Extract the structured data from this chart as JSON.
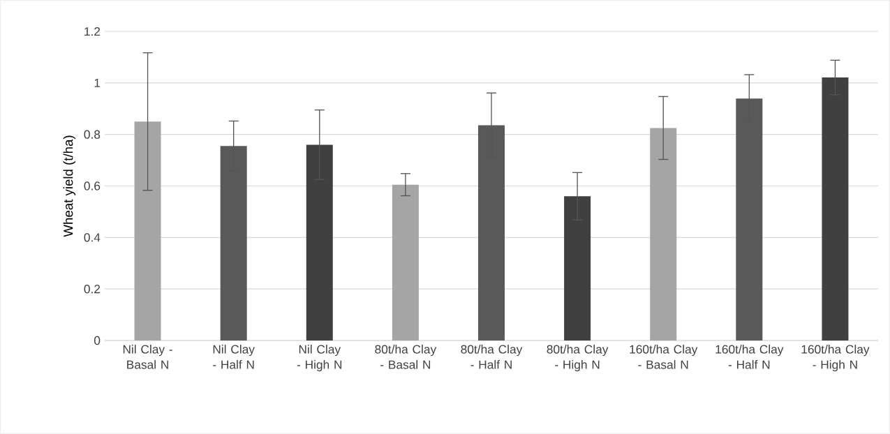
{
  "chart_data": {
    "type": "bar",
    "ylabel": "Wheat yield (t/ha)",
    "categories": [
      "Nil Clay - Basal N",
      "Nil Clay - Half N",
      "Nil Clay - High N",
      "80t/ha Clay - Basal N",
      "80t/ha Clay - Half N",
      "80t/ha Clay - High N",
      "160t/ha Clay - Basal N",
      "160t/ha Clay - Half N",
      "160t/ha Clay - High N"
    ],
    "values": [
      0.85,
      0.755,
      0.76,
      0.605,
      0.836,
      0.56,
      0.825,
      0.939,
      1.021
    ],
    "errors": [
      0.267,
      0.097,
      0.135,
      0.043,
      0.125,
      0.092,
      0.122,
      0.093,
      0.067
    ],
    "colors": [
      "#a5a5a5",
      "#595959",
      "#404040",
      "#a5a5a5",
      "#595959",
      "#404040",
      "#a5a5a5",
      "#595959",
      "#404040"
    ],
    "ylim": [
      0,
      1.2
    ],
    "yticks": [
      0,
      0.2,
      0.4,
      0.6,
      0.8,
      1,
      1.2
    ],
    "grid": "y"
  }
}
